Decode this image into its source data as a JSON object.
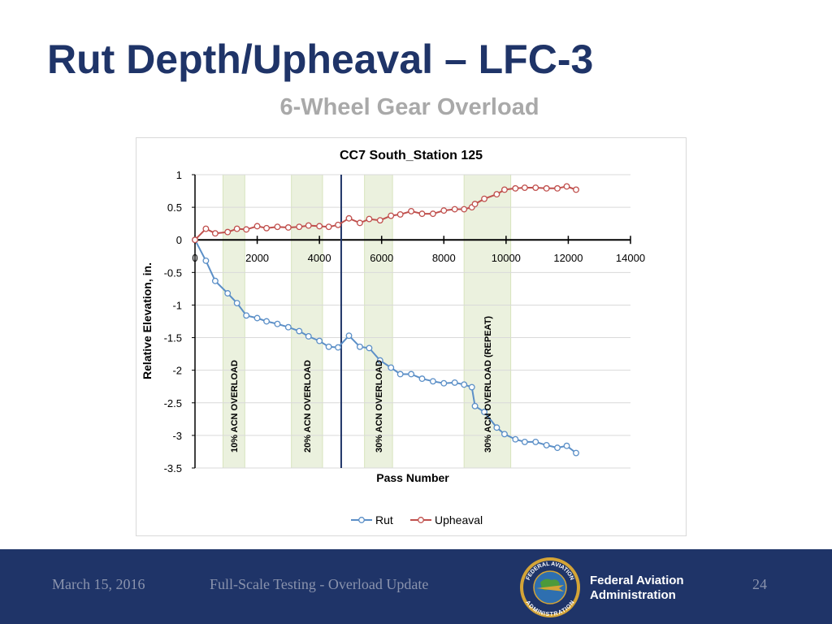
{
  "slide": {
    "title": "Rut Depth/Upheaval – LFC-3",
    "subtitle": "6-Wheel Gear Overload"
  },
  "footer": {
    "date": "March 15, 2016",
    "text": "Full-Scale Testing - Overload Update",
    "agency_line1": "Federal Aviation",
    "agency_line2": "Administration",
    "page": "24",
    "seal_top": "FEDERAL AVIATION",
    "seal_bottom": "ADMINISTRATION"
  },
  "colors": {
    "title": "#1f3468",
    "footer_bg": "#1f3468",
    "rut": "#5b8fc7",
    "upheaval": "#c0504d",
    "band": "#ebf1de",
    "vline": "#1f3468"
  },
  "chart_data": {
    "type": "line",
    "title": "CC7 South_Station 125",
    "xlabel": "Pass Number",
    "ylabel": "Relative Elevation, in.",
    "xlim": [
      0,
      14000
    ],
    "ylim": [
      -3.5,
      1
    ],
    "x_ticks": [
      "0",
      "2000",
      "4000",
      "6000",
      "8000",
      "10000",
      "12000",
      "14000"
    ],
    "y_ticks": [
      "1",
      "0.5",
      "0",
      "-0.5",
      "-1",
      "-1.5",
      "-2",
      "-2.5",
      "-3",
      "-3.5"
    ],
    "grid": true,
    "legend": "bottom",
    "vertical_line_x": 4700,
    "bands": [
      {
        "x0": 900,
        "x1": 1600,
        "label": "10% ACN OVERLOAD"
      },
      {
        "x0": 3100,
        "x1": 4100,
        "label": "20% ACN OVERLOAD"
      },
      {
        "x0": 5450,
        "x1": 6350,
        "label": "30% ACN OVERLOAD"
      },
      {
        "x0": 8650,
        "x1": 10150,
        "label": "30% ACN OVERLOAD (REPEAT)"
      }
    ],
    "series": [
      {
        "name": "Rut",
        "color": "#5b8fc7",
        "points": [
          [
            0,
            0
          ],
          [
            350,
            -0.32
          ],
          [
            650,
            -0.63
          ],
          [
            1050,
            -0.82
          ],
          [
            1350,
            -0.97
          ],
          [
            1650,
            -1.16
          ],
          [
            2000,
            -1.2
          ],
          [
            2300,
            -1.25
          ],
          [
            2650,
            -1.29
          ],
          [
            3000,
            -1.34
          ],
          [
            3350,
            -1.4
          ],
          [
            3650,
            -1.48
          ],
          [
            4000,
            -1.55
          ],
          [
            4300,
            -1.64
          ],
          [
            4600,
            -1.65
          ],
          [
            4950,
            -1.47
          ],
          [
            5300,
            -1.64
          ],
          [
            5600,
            -1.66
          ],
          [
            5950,
            -1.85
          ],
          [
            6300,
            -1.96
          ],
          [
            6600,
            -2.06
          ],
          [
            6950,
            -2.06
          ],
          [
            7300,
            -2.13
          ],
          [
            7650,
            -2.17
          ],
          [
            8000,
            -2.2
          ],
          [
            8350,
            -2.19
          ],
          [
            8650,
            -2.22
          ],
          [
            8900,
            -2.26
          ],
          [
            9000,
            -2.55
          ],
          [
            9300,
            -2.64
          ],
          [
            9700,
            -2.88
          ],
          [
            9950,
            -2.98
          ],
          [
            10300,
            -3.06
          ],
          [
            10600,
            -3.1
          ],
          [
            10950,
            -3.1
          ],
          [
            11300,
            -3.15
          ],
          [
            11650,
            -3.19
          ],
          [
            11950,
            -3.16
          ],
          [
            12250,
            -3.27
          ]
        ]
      },
      {
        "name": "Upheaval",
        "color": "#c0504d",
        "points": [
          [
            0,
            0
          ],
          [
            350,
            0.17
          ],
          [
            650,
            0.1
          ],
          [
            1050,
            0.12
          ],
          [
            1350,
            0.17
          ],
          [
            1650,
            0.16
          ],
          [
            2000,
            0.21
          ],
          [
            2300,
            0.18
          ],
          [
            2650,
            0.2
          ],
          [
            3000,
            0.19
          ],
          [
            3350,
            0.2
          ],
          [
            3650,
            0.22
          ],
          [
            4000,
            0.21
          ],
          [
            4300,
            0.2
          ],
          [
            4600,
            0.23
          ],
          [
            4950,
            0.33
          ],
          [
            5300,
            0.26
          ],
          [
            5600,
            0.32
          ],
          [
            5950,
            0.3
          ],
          [
            6300,
            0.37
          ],
          [
            6600,
            0.39
          ],
          [
            6950,
            0.44
          ],
          [
            7300,
            0.4
          ],
          [
            7650,
            0.4
          ],
          [
            8000,
            0.45
          ],
          [
            8350,
            0.47
          ],
          [
            8650,
            0.47
          ],
          [
            8900,
            0.5
          ],
          [
            9000,
            0.55
          ],
          [
            9300,
            0.63
          ],
          [
            9700,
            0.7
          ],
          [
            9950,
            0.77
          ],
          [
            10300,
            0.79
          ],
          [
            10600,
            0.8
          ],
          [
            10950,
            0.8
          ],
          [
            11300,
            0.79
          ],
          [
            11650,
            0.79
          ],
          [
            11950,
            0.82
          ],
          [
            12250,
            0.77
          ]
        ]
      }
    ]
  }
}
